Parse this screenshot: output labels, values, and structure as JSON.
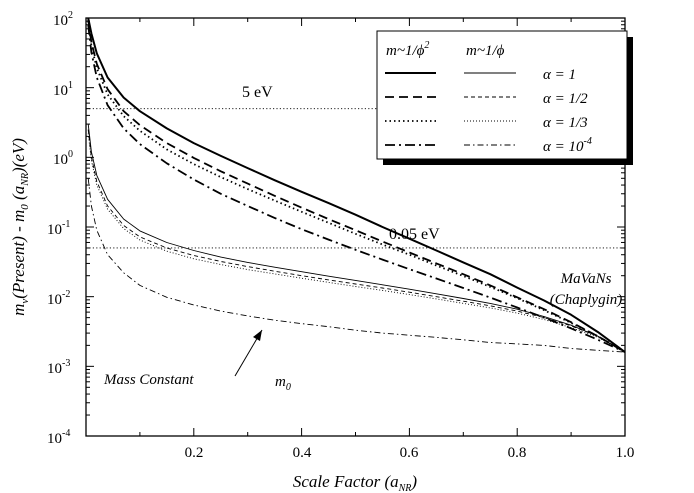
{
  "chart_data": {
    "type": "line",
    "xlabel": "Scale Factor (a",
    "xlabel_sub": "NR",
    "xlabel_close": ")",
    "ylabel_parts": {
      "m": "m",
      "nu": "ν",
      "p1": "(Present) - m",
      "zero": "0",
      "p2": " (a",
      "nr": "NR",
      "p3": ")(eV)"
    },
    "xlim": [
      0.0,
      1.0
    ],
    "ylim": [
      0.0001,
      100
    ],
    "yscale": "log",
    "x_ticks": [
      "0.2",
      "0.4",
      "0.6",
      "0.8",
      "1.0"
    ],
    "x_tick_values": [
      0.2,
      0.4,
      0.6,
      0.8,
      1.0
    ],
    "y_ticks": [
      {
        "base": "10",
        "exp": "-4",
        "value": 0.0001
      },
      {
        "base": "10",
        "exp": "-3",
        "value": 0.001
      },
      {
        "base": "10",
        "exp": "-2",
        "value": 0.01
      },
      {
        "base": "10",
        "exp": "-1",
        "value": 0.1
      },
      {
        "base": "10",
        "exp": "0",
        "value": 1
      },
      {
        "base": "10",
        "exp": "1",
        "value": 10
      },
      {
        "base": "10",
        "exp": "2",
        "value": 100
      }
    ],
    "reference_lines": [
      {
        "label": "5 eV",
        "value": 5
      },
      {
        "label": "0.05 eV",
        "value": 0.05
      }
    ],
    "annotations": {
      "mavans_line1": "MaVaNs",
      "mavans_line2": "(Chaplygin)",
      "mass_constant": "Mass Constant",
      "m0_base": "m",
      "m0_sub": "0"
    },
    "legend": {
      "col1_header": "m~1/ϕ",
      "col1_sup": "2",
      "col2_header": "m~1/ϕ",
      "rows": [
        {
          "label": "α = 1",
          "style": "solid"
        },
        {
          "label": "α = 1/2",
          "style": "dash"
        },
        {
          "label": "α = 1/3",
          "style": "dot"
        },
        {
          "label": "α = 10",
          "label_sup": "-4",
          "style": "dashdot"
        }
      ],
      "placement": "top-right"
    },
    "x": [
      0.004,
      0.01,
      0.02,
      0.04,
      0.07,
      0.1,
      0.15,
      0.2,
      0.25,
      0.3,
      0.35,
      0.4,
      0.45,
      0.5,
      0.55,
      0.6,
      0.65,
      0.7,
      0.75,
      0.8,
      0.85,
      0.9,
      0.95,
      1.0
    ],
    "series": [
      {
        "family": "1/phi^2",
        "alpha": "1",
        "style": "solid",
        "width": "thick",
        "values": [
          100,
          60,
          31,
          14,
          7.2,
          4.6,
          2.6,
          1.6,
          1.05,
          0.7,
          0.47,
          0.32,
          0.22,
          0.15,
          0.1,
          0.068,
          0.046,
          0.031,
          0.021,
          0.0135,
          0.0088,
          0.0055,
          0.0031,
          0.0016
        ]
      },
      {
        "family": "1/phi^2",
        "alpha": "1/2",
        "style": "dash",
        "width": "thick",
        "values": [
          95,
          45,
          22,
          9.5,
          4.6,
          2.9,
          1.6,
          0.98,
          0.63,
          0.42,
          0.28,
          0.19,
          0.13,
          0.09,
          0.062,
          0.043,
          0.03,
          0.021,
          0.0145,
          0.0098,
          0.0066,
          0.0043,
          0.0027,
          0.0016
        ]
      },
      {
        "family": "1/phi^2",
        "alpha": "1/3",
        "style": "dot",
        "width": "thick",
        "values": [
          90,
          40,
          19,
          8.0,
          3.9,
          2.4,
          1.3,
          0.8,
          0.52,
          0.35,
          0.24,
          0.165,
          0.115,
          0.08,
          0.056,
          0.04,
          0.028,
          0.0198,
          0.0138,
          0.0095,
          0.0064,
          0.0042,
          0.0027,
          0.0016
        ]
      },
      {
        "family": "1/phi^2",
        "alpha": "10^-4",
        "style": "dashdot",
        "width": "thick",
        "values": [
          80,
          32,
          14,
          5.6,
          2.6,
          1.55,
          0.82,
          0.48,
          0.3,
          0.2,
          0.135,
          0.093,
          0.066,
          0.047,
          0.034,
          0.0248,
          0.0182,
          0.0133,
          0.0097,
          0.007,
          0.005,
          0.0035,
          0.0024,
          0.0016
        ]
      },
      {
        "family": "1/phi",
        "alpha": "1",
        "style": "solid",
        "width": "thin",
        "values": [
          3.0,
          1.2,
          0.55,
          0.25,
          0.13,
          0.088,
          0.06,
          0.046,
          0.037,
          0.031,
          0.0265,
          0.0228,
          0.0197,
          0.0171,
          0.0148,
          0.0128,
          0.011,
          0.0094,
          0.008,
          0.0066,
          0.0052,
          0.0039,
          0.0027,
          0.0016
        ]
      },
      {
        "family": "1/phi",
        "alpha": "1/2",
        "style": "dash",
        "width": "thin",
        "values": [
          2.5,
          1.0,
          0.45,
          0.2,
          0.105,
          0.072,
          0.05,
          0.039,
          0.032,
          0.027,
          0.0232,
          0.02,
          0.0174,
          0.0152,
          0.0133,
          0.0116,
          0.01,
          0.0086,
          0.0074,
          0.0062,
          0.005,
          0.0038,
          0.0027,
          0.0016
        ]
      },
      {
        "family": "1/phi",
        "alpha": "1/3",
        "style": "dot",
        "width": "thin",
        "values": [
          2.2,
          0.9,
          0.4,
          0.18,
          0.095,
          0.065,
          0.045,
          0.035,
          0.029,
          0.0245,
          0.0212,
          0.0184,
          0.016,
          0.014,
          0.0123,
          0.0107,
          0.0093,
          0.008,
          0.0069,
          0.0058,
          0.0047,
          0.0036,
          0.0026,
          0.0016
        ]
      },
      {
        "family": "1/phi",
        "alpha": "10^-4",
        "style": "dashdot",
        "width": "thin",
        "values": [
          0.5,
          0.2,
          0.09,
          0.04,
          0.022,
          0.0145,
          0.0098,
          0.0076,
          0.0062,
          0.0053,
          0.0046,
          0.0041,
          0.0037,
          0.0033,
          0.003,
          0.0028,
          0.0026,
          0.0024,
          0.0022,
          0.0021,
          0.002,
          0.0018,
          0.0017,
          0.0016
        ]
      }
    ]
  }
}
